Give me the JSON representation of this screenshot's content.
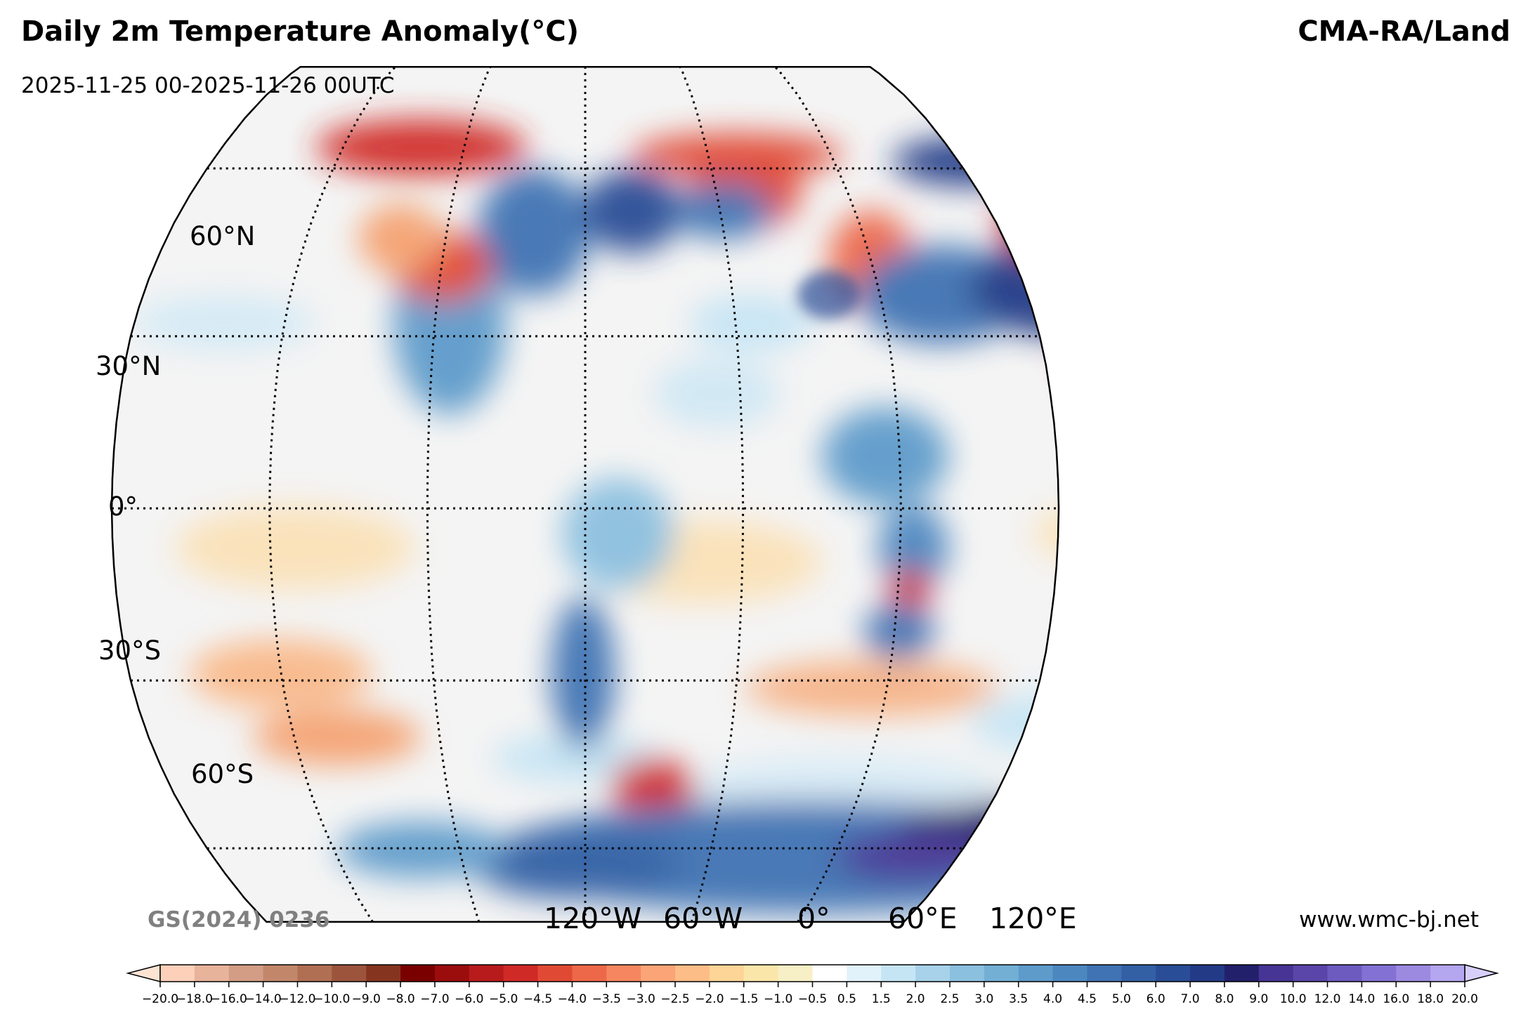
{
  "header": {
    "title": "Daily 2m Temperature Anomaly(°C)",
    "subtitle": "2025-11-25 00-2025-11-26 00UTC",
    "source": "CMA-RA/Land"
  },
  "footer": {
    "review_number": "GS(2024) 0236",
    "website": "www.wmc-bj.net"
  },
  "map": {
    "projection": "Robinson",
    "latitude_labels": [
      "60°N",
      "30°N",
      "0°",
      "30°S",
      "60°S"
    ],
    "longitude_labels": [
      "120°W",
      "60°W",
      "0°",
      "60°E",
      "120°E"
    ]
  },
  "colorbar": {
    "unit": "°C",
    "extend": "both",
    "levels": [
      "−20.0",
      "−18.0",
      "−16.0",
      "−14.0",
      "−12.0",
      "−10.0",
      "−9.0",
      "−8.0",
      "−7.0",
      "−6.0",
      "−5.0",
      "−4.5",
      "−4.0",
      "−3.5",
      "−3.0",
      "−2.5",
      "−2.0",
      "−1.5",
      "−1.0",
      "−0.5",
      "0.5",
      "1.5",
      "2.0",
      "2.5",
      "3.0",
      "3.5",
      "4.0",
      "4.5",
      "5.0",
      "6.0",
      "7.0",
      "8.0",
      "9.0",
      "10.0",
      "12.0",
      "14.0",
      "16.0",
      "18.0",
      "20.0"
    ],
    "colors": [
      "#fdd0b9",
      "#e8b39b",
      "#d29d84",
      "#c2876b",
      "#b06f53",
      "#9c543d",
      "#85351f",
      "#7a0000",
      "#9b0d0d",
      "#b81b1b",
      "#d02a27",
      "#e04a34",
      "#ed6848",
      "#f6865f",
      "#fba477",
      "#fdbd86",
      "#fdd596",
      "#fbe6aa",
      "#f7efc6",
      "#ffffff",
      "#e2f2fa",
      "#c6e5f4",
      "#a7d2ea",
      "#8cc0df",
      "#73afd5",
      "#5e9bcb",
      "#4d87c0",
      "#3f73b3",
      "#3360a5",
      "#294d96",
      "#233b86",
      "#23206b",
      "#473595",
      "#5a45a9",
      "#6d5bc0",
      "#8371d3",
      "#9c8ae1",
      "#b4a6ef"
    ],
    "under_color": "#fde3d2",
    "over_color": "#d7cffa"
  }
}
